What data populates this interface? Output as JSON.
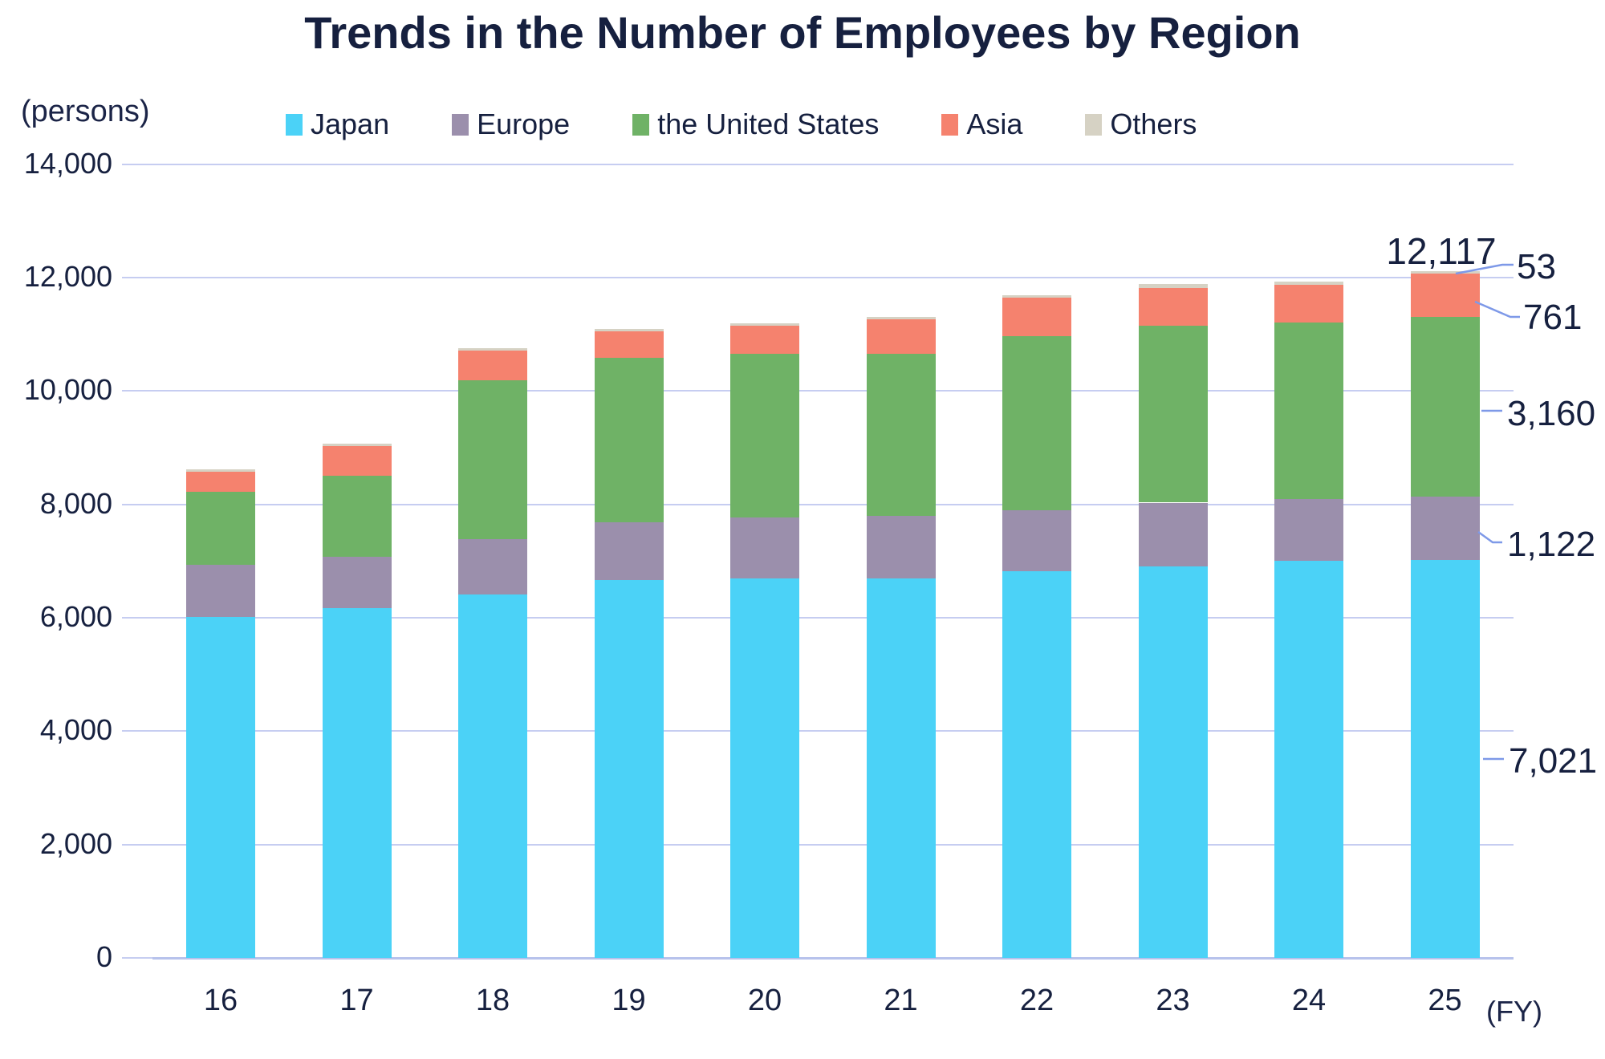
{
  "title": "Trends in the Number of Employees by Region",
  "y_axis_unit": "(persons)",
  "x_axis_unit": "(FY)",
  "colors": {
    "text": "#16203f",
    "gridline": "#c6cdf1",
    "zero_axis": "#b7c2ec",
    "leader_line": "#7e99e8",
    "japan": "#4bd2f7",
    "europe": "#9b8fac",
    "united_states": "#6fb266",
    "asia": "#f5826e",
    "others": "#d6d2c4"
  },
  "chart_data": {
    "type": "bar",
    "stacked": true,
    "title": "Trends in the Number of Employees by Region",
    "xlabel": "(FY)",
    "ylabel": "(persons)",
    "categories": [
      "16",
      "17",
      "18",
      "19",
      "20",
      "21",
      "22",
      "23",
      "24",
      "25"
    ],
    "series": [
      {
        "name": "Japan",
        "color": "#4bd2f7",
        "values": [
          6020,
          6165,
          6410,
          6660,
          6690,
          6695,
          6820,
          6900,
          7010,
          7021
        ]
      },
      {
        "name": "Europe",
        "color": "#9b8fac",
        "values": [
          915,
          915,
          975,
          1030,
          1085,
          1105,
          1070,
          1130,
          1090,
          1122
        ]
      },
      {
        "name": "the United States",
        "color": "#6fb266",
        "values": [
          1290,
          1420,
          2800,
          2890,
          2875,
          2850,
          3080,
          3120,
          3100,
          3160
        ]
      },
      {
        "name": "Asia",
        "color": "#f5826e",
        "values": [
          350,
          530,
          525,
          470,
          500,
          610,
          680,
          660,
          665,
          761
        ]
      },
      {
        "name": "Others",
        "color": "#d6d2c4",
        "values": [
          40,
          40,
          40,
          40,
          40,
          40,
          40,
          70,
          60,
          53
        ]
      }
    ],
    "totals": [
      8615,
      9070,
      10750,
      11090,
      11190,
      11300,
      11690,
      11880,
      11925,
      12117
    ],
    "ylim": [
      0,
      14000
    ],
    "ytick_interval": 2000,
    "ytick_labels": [
      "0",
      "2,000",
      "4,000",
      "6,000",
      "8,000",
      "10,000",
      "12,000",
      "14,000"
    ],
    "grid": true,
    "legend_position": "top",
    "annotations": {
      "total": "12,117",
      "others": "53",
      "asia": "761",
      "united_states": "3,160",
      "europe": "1,122",
      "japan": "7,021"
    }
  }
}
